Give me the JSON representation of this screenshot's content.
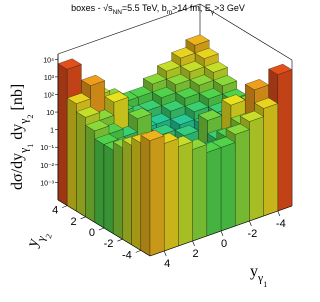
{
  "chart_data": {
    "type": "lego",
    "title": [
      {
        "text": "boxes - √",
        "level": 0
      },
      {
        "text": "s",
        "level": 0
      },
      {
        "text": "NN",
        "level": 1
      },
      {
        "text": "=5.5 TeV, b",
        "level": 0
      },
      {
        "text": "m",
        "level": 1
      },
      {
        "text": ">14 fm, E",
        "level": 0
      },
      {
        "text": "γ",
        "level": 1
      },
      {
        "text": ">3 GeV",
        "level": 0
      }
    ],
    "x_label": [
      {
        "text": "y",
        "level": 0
      },
      {
        "text": "γ",
        "level": 1
      },
      {
        "text": "1",
        "level": 2
      }
    ],
    "y_label": [
      {
        "text": "y",
        "level": 0
      },
      {
        "text": "γ",
        "level": 1
      },
      {
        "text": "2",
        "level": 2
      }
    ],
    "z_label": [
      {
        "text": "dσ/dy",
        "level": 0
      },
      {
        "text": "γ",
        "level": 1
      },
      {
        "text": "1",
        "level": 2
      },
      {
        "text": " dy",
        "level": 0
      },
      {
        "text": "γ",
        "level": 1
      },
      {
        "text": "2",
        "level": 2
      },
      {
        "text": " [nb]",
        "level": 0
      }
    ],
    "x_edges": [
      -5,
      -4,
      -3,
      -2,
      -1,
      0,
      1,
      2,
      3,
      4,
      5
    ],
    "y_edges": [
      -5,
      -4,
      -3,
      -2,
      -1,
      0,
      1,
      2,
      3,
      4,
      5
    ],
    "z": [
      [
        5600,
        130,
        45,
        16,
        5.6,
        5.6,
        16,
        45,
        130,
        360
      ],
      [
        130,
        710,
        16,
        5.6,
        2,
        2,
        5.6,
        16,
        45,
        130
      ],
      [
        45,
        16,
        89,
        2,
        0.71,
        0.71,
        2,
        5.6,
        16,
        45
      ],
      [
        16,
        5.6,
        2,
        11,
        0.25,
        0.25,
        0.71,
        2,
        5.6,
        16
      ],
      [
        5.6,
        2,
        0.71,
        0.25,
        1.4,
        0.089,
        0.25,
        0.71,
        2,
        5.6
      ],
      [
        5.6,
        2,
        0.71,
        0.25,
        0.089,
        1.4,
        0.25,
        0.71,
        2,
        5.6
      ],
      [
        16,
        5.6,
        2,
        0.71,
        0.25,
        0.25,
        11,
        2,
        5.6,
        16
      ],
      [
        45,
        16,
        5.6,
        2,
        0.71,
        0.71,
        2,
        89,
        16,
        45
      ],
      [
        130,
        45,
        16,
        5.6,
        2,
        2,
        5.6,
        16,
        710,
        130
      ],
      [
        360,
        130,
        45,
        16,
        5.6,
        5.6,
        16,
        45,
        130,
        5600
      ]
    ],
    "xlim": [
      -5,
      5
    ],
    "ylim": [
      -5,
      5
    ],
    "zlim": [
      0.0001,
      20000
    ],
    "zlog": true,
    "xticks": [
      -4,
      -2,
      0,
      2,
      4
    ],
    "yticks": [
      -4,
      -2,
      0,
      2,
      4
    ],
    "zticks": [
      {
        "value": 0.001,
        "label": "10⁻³"
      },
      {
        "value": 0.01,
        "label": "10⁻²"
      },
      {
        "value": 0.1,
        "label": "10⁻¹"
      },
      1,
      10,
      {
        "value": 100,
        "label": "10²"
      },
      {
        "value": 1000,
        "label": "10³"
      },
      {
        "value": 10000,
        "label": "10⁴"
      }
    ],
    "palette": [
      "#3b0f70",
      "#2233c8",
      "#1b8fe0",
      "#18c9b0",
      "#4fd24a",
      "#e7e21f",
      "#f08a1a",
      "#d7191c"
    ]
  }
}
